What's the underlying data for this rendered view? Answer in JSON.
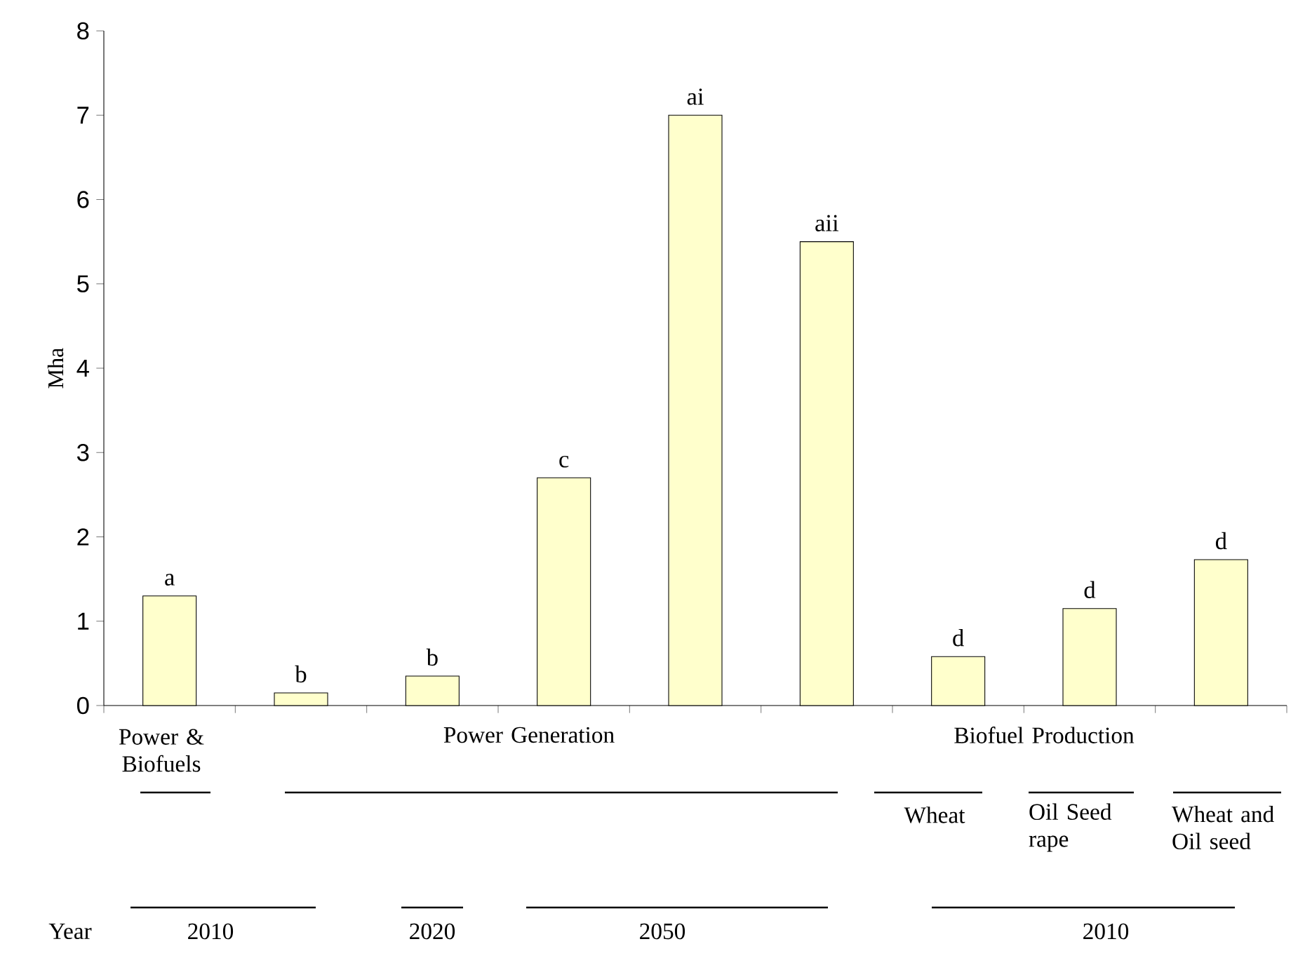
{
  "chart_data": {
    "type": "bar",
    "ylabel": "Mha",
    "categories": [
      null,
      null,
      null,
      null,
      null,
      null,
      null,
      null,
      null
    ],
    "values": [
      1.3,
      0.15,
      0.35,
      2.7,
      7.0,
      5.5,
      0.58,
      1.15,
      1.73
    ],
    "value_labels": [
      "a",
      "b",
      "b",
      "c",
      "ai",
      "aii",
      "d",
      "d",
      "d"
    ],
    "color": "#ffffcc",
    "ylim": [
      0,
      8
    ],
    "yticks": [
      0,
      1,
      2,
      3,
      4,
      5,
      6,
      7,
      8
    ],
    "grid": false,
    "annotations": [
      "Power & Biofuels",
      "Power Generation",
      "Biofuel Production",
      "Wheat",
      "Oil Seed rape",
      "Wheat and Oil seed",
      "Year",
      "2010",
      "2020",
      "2050",
      "2010"
    ]
  }
}
